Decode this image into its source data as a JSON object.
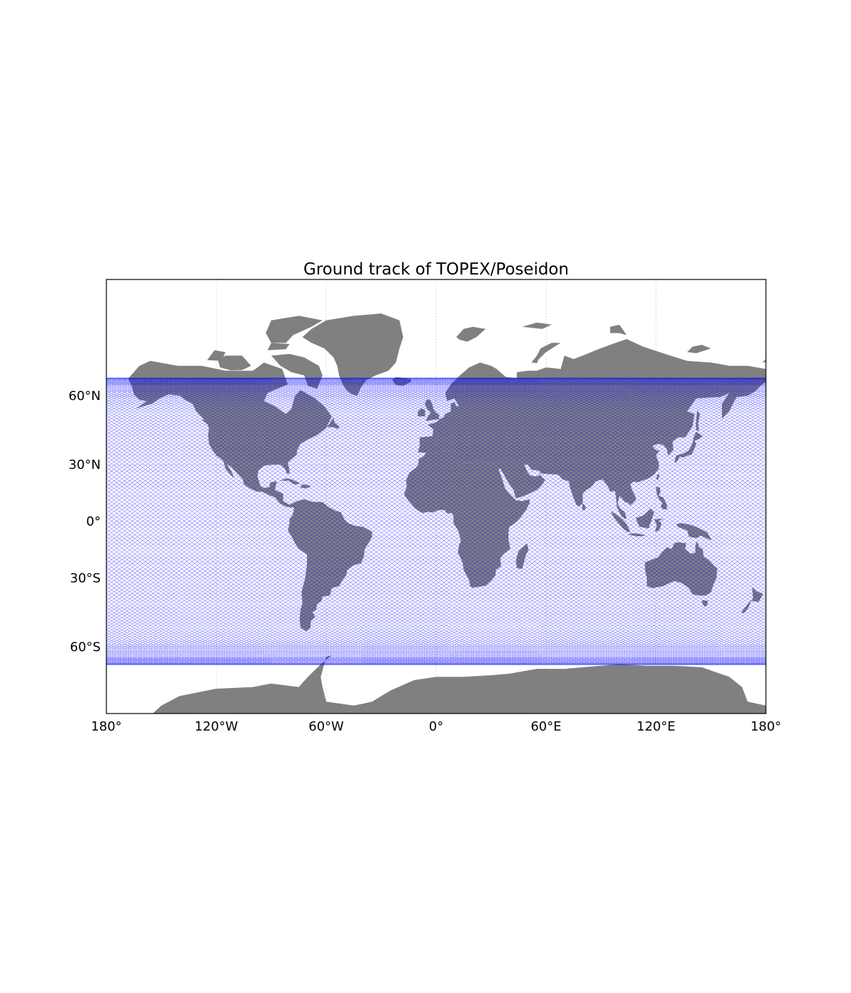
{
  "chart_data": {
    "type": "map",
    "title": "Ground track of TOPEX/Poseidon",
    "projection": "Miller cylindrical",
    "lon_range": [
      -180,
      180
    ],
    "lat_range": [
      -90,
      90
    ],
    "gridlines": true,
    "land_color": "#808080",
    "track_color": "#0000ff",
    "x_ticks": [
      {
        "lon": -180,
        "label": "180°"
      },
      {
        "lon": -120,
        "label": "120°W"
      },
      {
        "lon": -60,
        "label": "60°W"
      },
      {
        "lon": 0,
        "label": "0°"
      },
      {
        "lon": 60,
        "label": "60°E"
      },
      {
        "lon": 120,
        "label": "120°E"
      },
      {
        "lon": 180,
        "label": "180°"
      }
    ],
    "y_ticks": [
      {
        "lat": 60,
        "label": "60°N"
      },
      {
        "lat": 30,
        "label": "30°N"
      },
      {
        "lat": 0,
        "label": "0°"
      },
      {
        "lat": -30,
        "label": "30°S"
      },
      {
        "lat": -60,
        "label": "60°S"
      }
    ],
    "ground_track": {
      "inclination_deg": 66,
      "passes_per_direction": 127
    }
  }
}
